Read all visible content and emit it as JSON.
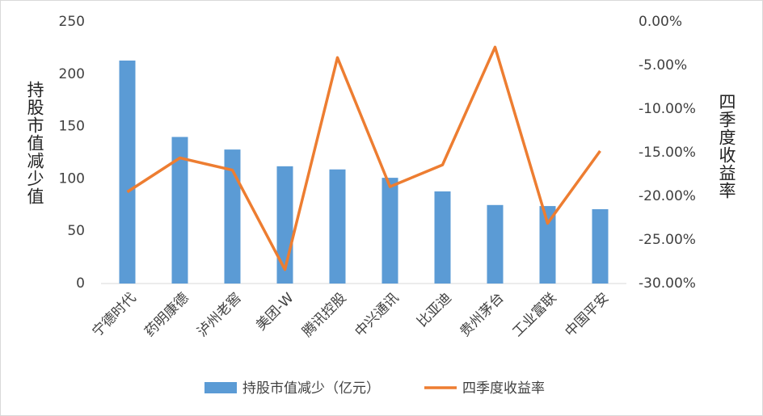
{
  "chart_data": {
    "type": "bar-line",
    "y_label": "持股市值减少值",
    "y2_label": "四季度收益率",
    "categories": [
      "宁德时代",
      "药明康德",
      "泸州老窖",
      "美团-W",
      "腾讯控股",
      "中兴通讯",
      "比亚迪",
      "贵州茅台",
      "工业富联",
      "中国平安"
    ],
    "series": [
      {
        "name": "持股市值减少（亿元）",
        "type": "bar",
        "color": "#5b9bd5",
        "values": [
          213,
          140,
          128,
          112,
          109,
          101,
          88,
          75,
          74,
          71
        ]
      },
      {
        "name": "四季度收益率",
        "type": "line",
        "axis": "y2",
        "color": "#ed7d31",
        "values": [
          -19.5,
          -15.6,
          -17.0,
          -28.4,
          -4.1,
          -18.9,
          -16.4,
          -2.9,
          -23.1,
          -14.8
        ]
      }
    ],
    "ylim": [
      0,
      250
    ],
    "yticks": [
      0,
      50,
      100,
      150,
      200,
      250
    ],
    "y2lim": [
      -30,
      0
    ],
    "y2ticks": [
      {
        "value": -30,
        "label": "-30.00%"
      },
      {
        "value": -25,
        "label": "-25.00%"
      },
      {
        "value": -20,
        "label": "-20.00%"
      },
      {
        "value": -15,
        "label": "-15.00%"
      },
      {
        "value": -10,
        "label": "-10.00%"
      },
      {
        "value": -5,
        "label": "-5.00%"
      },
      {
        "value": 0,
        "label": "0.00%"
      }
    ],
    "grid": false,
    "legend": "bottom"
  }
}
